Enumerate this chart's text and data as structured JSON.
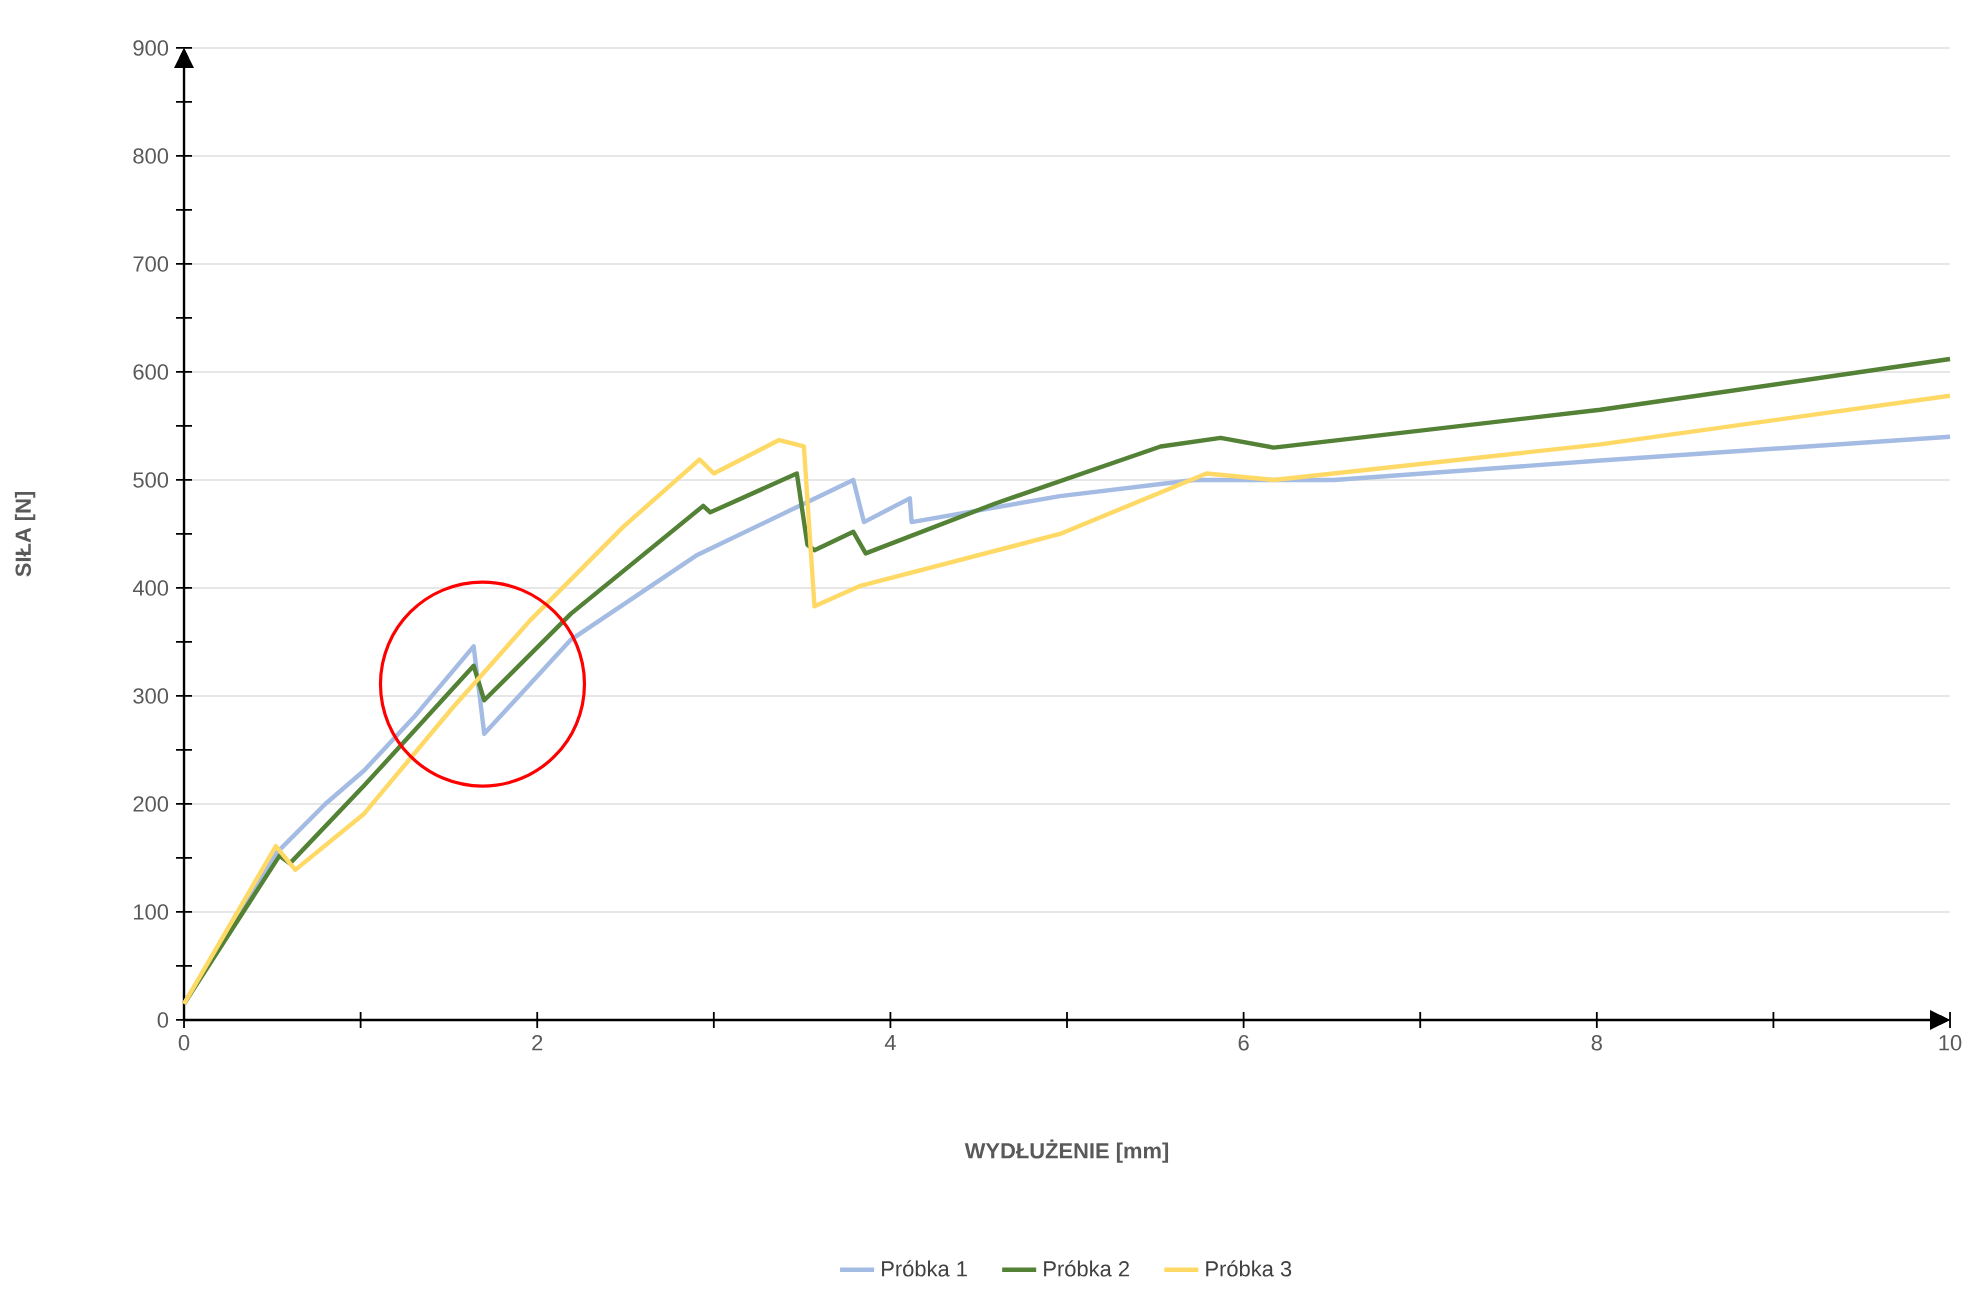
{
  "chart_data": {
    "type": "line",
    "xlabel": "WYDŁUŻENIE [mm]",
    "ylabel": "SIŁA [N]",
    "xlim": [
      0,
      10
    ],
    "ylim": [
      0,
      900
    ],
    "xticks": [
      0,
      {
        "value": 1,
        "label": null
      },
      2,
      {
        "value": 3,
        "label": null
      },
      4,
      {
        "value": 5,
        "label": null
      },
      6,
      {
        "value": 7,
        "label": null
      },
      8,
      {
        "value": 9,
        "label": null
      },
      10
    ],
    "yticks": [
      0,
      {
        "value": 50,
        "label": null
      },
      100,
      {
        "value": 150,
        "label": null
      },
      200,
      {
        "value": 250,
        "label": null
      },
      300,
      {
        "value": 350,
        "label": null
      },
      400,
      {
        "value": 450,
        "label": null
      },
      500,
      {
        "value": 550,
        "label": null
      },
      600,
      {
        "value": 650,
        "label": null
      },
      700,
      {
        "value": 750,
        "label": null
      },
      800,
      {
        "value": 850,
        "label": null
      },
      900
    ],
    "grid": "y",
    "legend": "bottom",
    "marker": "none",
    "line_style": "solid",
    "series": [
      {
        "name": "Próbka 1",
        "color": "#a4bbe3",
        "x": [
          0,
          0.52,
          0.8,
          1.02,
          1.3,
          1.64,
          1.7,
          2.19,
          2.9,
          3.51,
          3.79,
          3.85,
          4.11,
          4.12,
          4.96,
          5.72,
          6.51,
          8.02,
          10
        ],
        "values": [
          15,
          154,
          200,
          231,
          280,
          346,
          265,
          352,
          430,
          478,
          500,
          461,
          483,
          461,
          485,
          500,
          500,
          518,
          540
        ]
      },
      {
        "name": "Próbka 2",
        "color": "#538135",
        "x": [
          0,
          0.54,
          0.6,
          1.02,
          1.64,
          1.7,
          2.19,
          2.94,
          2.98,
          3.47,
          3.53,
          3.57,
          3.79,
          3.86,
          4.59,
          5.53,
          5.87,
          6.17,
          8.02,
          10
        ],
        "values": [
          15,
          152,
          145,
          217,
          328,
          296,
          376,
          476,
          470,
          506,
          440,
          435,
          452,
          432,
          478,
          531,
          539,
          530,
          565,
          612
        ]
      },
      {
        "name": "Próbka 3",
        "color": "#ffd966",
        "x": [
          0,
          0.52,
          0.63,
          1.02,
          1.51,
          1.96,
          2.49,
          2.92,
          3.0,
          3.37,
          3.51,
          3.57,
          3.83,
          4.96,
          5.79,
          6.17,
          8.02,
          10
        ],
        "values": [
          15,
          161,
          139,
          191,
          287,
          370,
          457,
          519,
          506,
          537,
          531,
          383,
          402,
          450,
          506,
          500,
          533,
          578
        ]
      }
    ]
  }
}
